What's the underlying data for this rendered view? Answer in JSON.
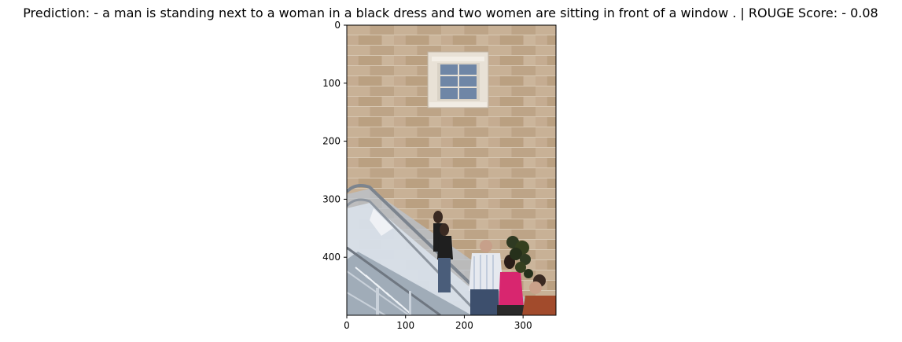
{
  "chart_data": {
    "type": "image",
    "title": "Prediction: - a man is standing next to a woman in a black dress and two women are sitting in front of a window . | ROUGE Score: - 0.08",
    "xlabel": "",
    "ylabel": "",
    "xlim": [
      0,
      356
    ],
    "ylim": [
      500,
      0
    ],
    "x_ticks": [
      0,
      100,
      200,
      300
    ],
    "y_ticks": [
      0,
      100,
      200,
      300,
      400
    ],
    "grid": false,
    "image": {
      "width": 356,
      "height": 500,
      "description_items": [
        "stone-wall",
        "window",
        "escalator",
        "people",
        "plant"
      ]
    }
  },
  "colors": {
    "wall": "#cdb396",
    "wall_dark": "#b9a083",
    "mortar": "#e3d3bd",
    "window_frame": "#ece6dc",
    "window_glass": "#6f86a6",
    "rail": "#8d959f",
    "glass": "#c4ced9",
    "pink_top": "#d8266f",
    "blue_jeans": "#4a5d7a",
    "white_shirt": "#e6e9ef",
    "dark": "#1f1f1f",
    "plant": "#2f3a22",
    "orange_shirt": "#a24b2c"
  }
}
